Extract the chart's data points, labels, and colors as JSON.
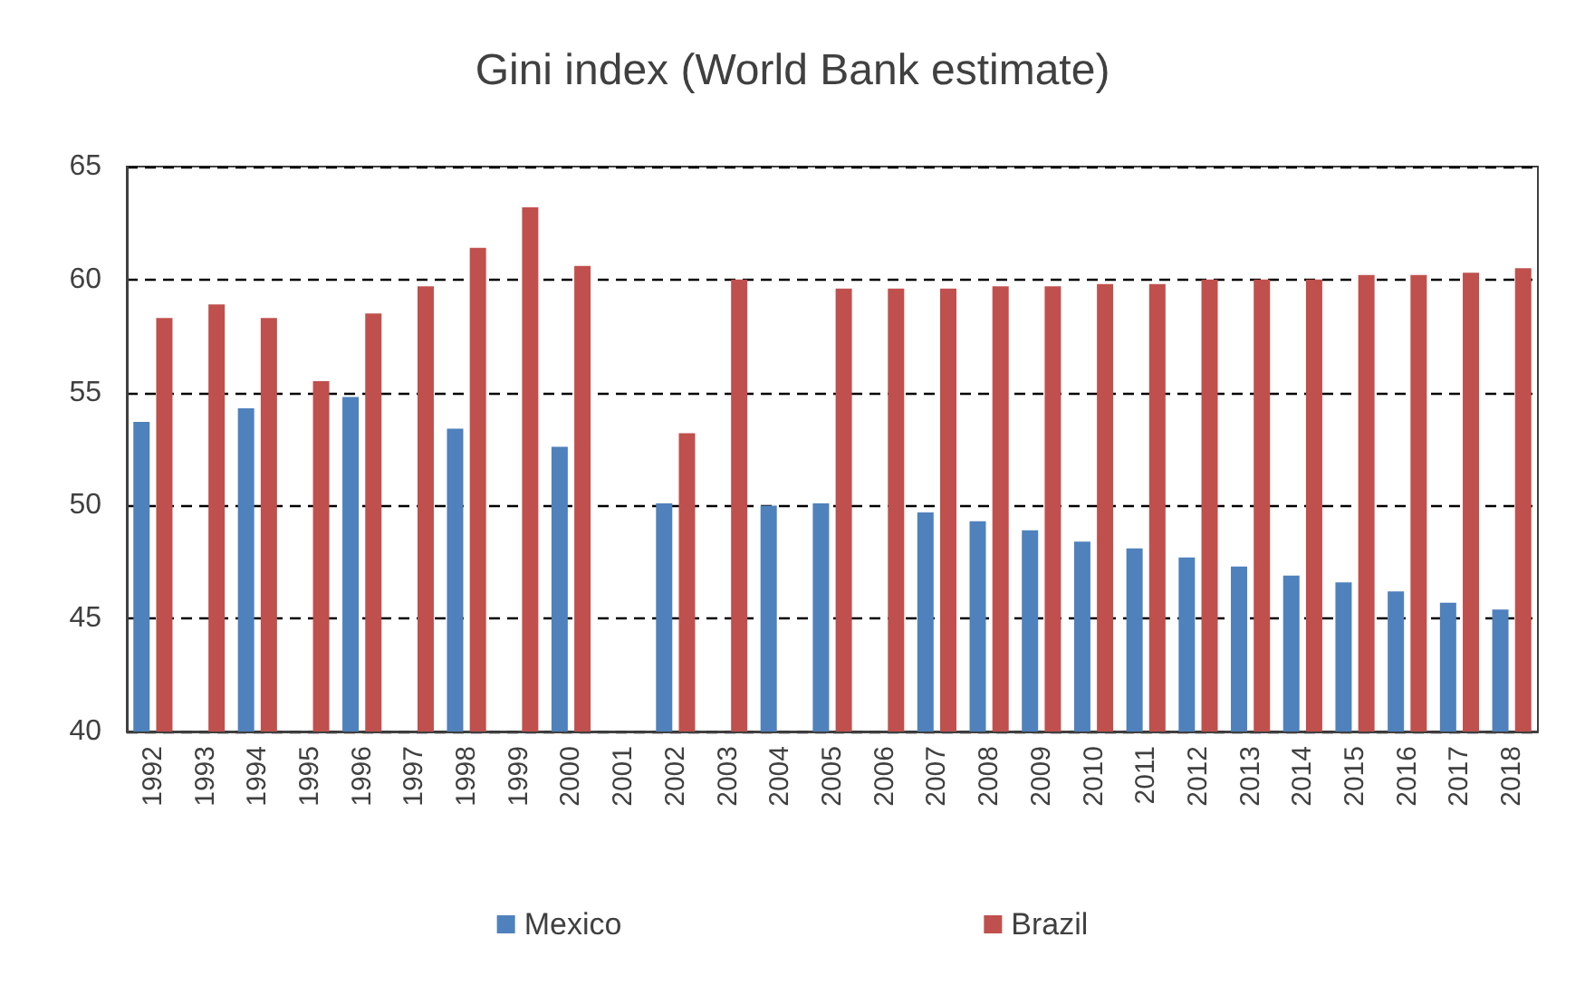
{
  "chart_data": {
    "type": "bar",
    "title": "Gini index (World Bank estimate)",
    "categories": [
      "1992",
      "1993",
      "1994",
      "1995",
      "1996",
      "1997",
      "1998",
      "1999",
      "2000",
      "2001",
      "2002",
      "2003",
      "2004",
      "2005",
      "2006",
      "2007",
      "2008",
      "2009",
      "2010",
      "2011",
      "2012",
      "2013",
      "2014",
      "2015",
      "2016",
      "2017",
      "2018"
    ],
    "series": [
      {
        "name": "Mexico",
        "color": "#4f81bd",
        "values": [
          53.7,
          null,
          54.3,
          null,
          54.8,
          null,
          53.4,
          null,
          52.6,
          null,
          50.1,
          null,
          50.0,
          50.1,
          null,
          49.7,
          49.3,
          48.9,
          48.4,
          48.1,
          47.7,
          47.3,
          46.9,
          46.6,
          46.2,
          45.7,
          45.4
        ]
      },
      {
        "name": "Brazil",
        "color": "#c0504d",
        "values": [
          58.3,
          58.9,
          58.3,
          55.5,
          58.5,
          59.7,
          61.4,
          63.2,
          60.6,
          null,
          53.2,
          60.0,
          null,
          59.6,
          59.6,
          59.6,
          59.7,
          59.7,
          59.8,
          59.8,
          60.0,
          60.0,
          60.0,
          60.2,
          60.2,
          60.3,
          60.5
        ]
      }
    ],
    "ylim": [
      40,
      65
    ],
    "yticks": [
      40,
      45,
      50,
      55,
      60,
      65
    ],
    "grid": "y",
    "legend": "bottom"
  }
}
